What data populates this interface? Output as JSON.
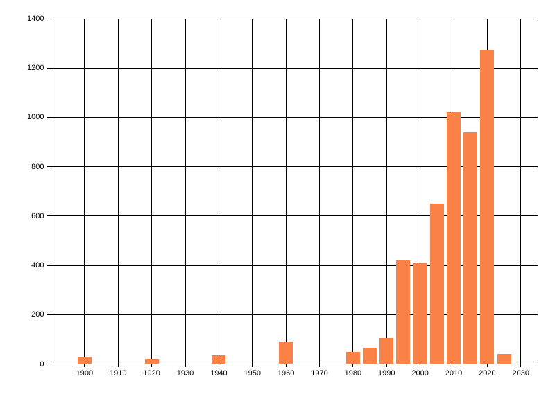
{
  "chart_data": {
    "type": "bar",
    "title": "",
    "xlabel": "",
    "ylabel": "",
    "x": [
      1900,
      1920,
      1940,
      1960,
      1980,
      1985,
      1990,
      1995,
      2000,
      2005,
      2010,
      2015,
      2020,
      2025
    ],
    "values": [
      30,
      20,
      35,
      90,
      50,
      65,
      105,
      420,
      410,
      650,
      1020,
      940,
      1275,
      40
    ],
    "x_ticks": [
      1900,
      1910,
      1920,
      1930,
      1940,
      1950,
      1960,
      1970,
      1980,
      1990,
      2000,
      2010,
      2020,
      2030
    ],
    "y_ticks": [
      0,
      200,
      400,
      600,
      800,
      1000,
      1200,
      1400
    ],
    "xlim": [
      1890,
      2035
    ],
    "ylim": [
      0,
      1400
    ],
    "grid": true,
    "legend_position": "none",
    "bar_color": "#FB8246",
    "gridline_color": "#000000",
    "background_color": "#FFFFFF",
    "text_color": "#000000"
  }
}
